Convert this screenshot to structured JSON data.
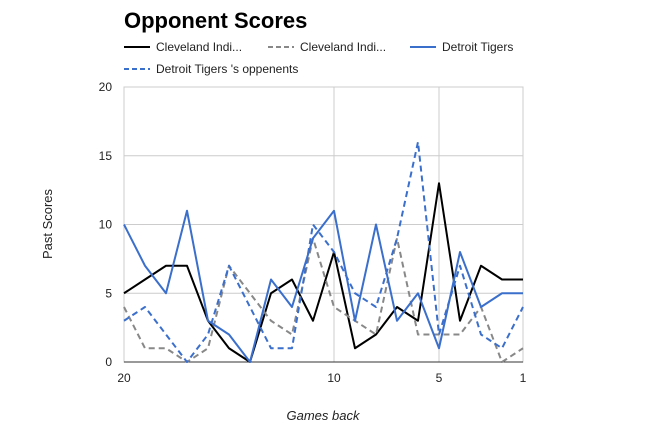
{
  "chart_data": {
    "type": "line",
    "title": "Opponent Scores",
    "xlabel": "Games back",
    "ylabel": "Past Scores",
    "xlim": [
      20,
      1
    ],
    "ylim": [
      0,
      20
    ],
    "x_ticks": [
      "20",
      "10",
      "5",
      "1"
    ],
    "y_ticks": [
      "0",
      "5",
      "10",
      "15",
      "20"
    ],
    "grid": true,
    "legend_position": "top",
    "x": [
      20,
      19,
      18,
      17,
      16,
      15,
      14,
      13,
      12,
      11,
      10,
      9,
      8,
      7,
      6,
      5,
      4,
      3,
      2,
      1
    ],
    "series": [
      {
        "name": "Cleveland Indi...",
        "color": "#000000",
        "dash": "solid",
        "values": [
          5,
          6,
          7,
          7,
          3,
          1,
          0,
          5,
          6,
          3,
          8,
          1,
          2,
          4,
          3,
          13,
          3,
          7,
          6,
          6
        ]
      },
      {
        "name": "Cleveland Indi...",
        "color": "#888888",
        "dash": "dashed",
        "values": [
          4,
          1,
          1,
          0,
          1,
          7,
          5,
          3,
          2,
          9,
          4,
          3,
          2,
          9,
          2,
          2,
          2,
          4,
          0,
          1
        ]
      },
      {
        "name": "Detroit Tigers",
        "color": "#3b6fcc",
        "dash": "solid",
        "values": [
          10,
          7,
          5,
          11,
          3,
          2,
          0,
          6,
          4,
          9,
          11,
          3,
          10,
          3,
          5,
          1,
          8,
          4,
          5,
          5
        ]
      },
      {
        "name": "Detroit Tigers 's oppenents",
        "color": "#3b6fcc",
        "dash": "dashed",
        "values": [
          3,
          4,
          2,
          0,
          2,
          7,
          4,
          1,
          1,
          10,
          8,
          5,
          4,
          9,
          16,
          2,
          7,
          2,
          1,
          4
        ]
      }
    ]
  }
}
